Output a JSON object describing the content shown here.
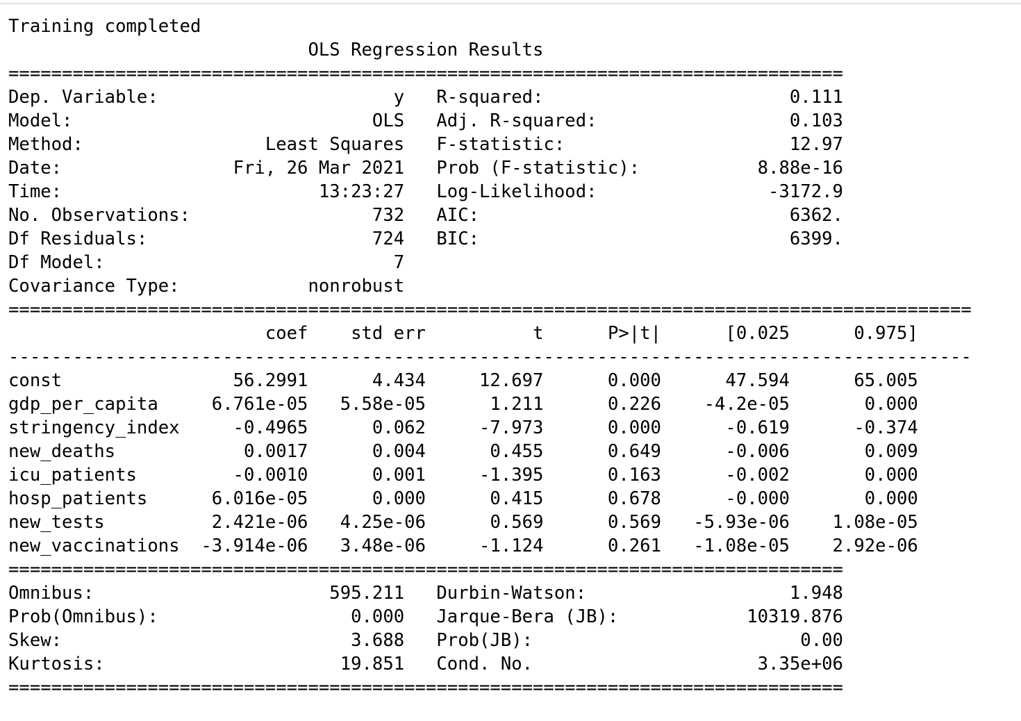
{
  "output": {
    "status": "Training completed",
    "title": "OLS Regression Results",
    "rule_double": "==============================================================================",
    "rule_double_wide": "==========================================================================================",
    "rule_single_wide": "------------------------------------------------------------------------------------------",
    "model_info": [
      {
        "left_label": "Dep. Variable:",
        "left_value": "y",
        "right_label": "R-squared:",
        "right_value": "0.111"
      },
      {
        "left_label": "Model:",
        "left_value": "OLS",
        "right_label": "Adj. R-squared:",
        "right_value": "0.103"
      },
      {
        "left_label": "Method:",
        "left_value": "Least Squares",
        "right_label": "F-statistic:",
        "right_value": "12.97"
      },
      {
        "left_label": "Date:",
        "left_value": "Fri, 26 Mar 2021",
        "right_label": "Prob (F-statistic):",
        "right_value": "8.88e-16"
      },
      {
        "left_label": "Time:",
        "left_value": "13:23:27",
        "right_label": "Log-Likelihood:",
        "right_value": "-3172.9"
      },
      {
        "left_label": "No. Observations:",
        "left_value": "732",
        "right_label": "AIC:",
        "right_value": "6362."
      },
      {
        "left_label": "Df Residuals:",
        "left_value": "724",
        "right_label": "BIC:",
        "right_value": "6399."
      },
      {
        "left_label": "Df Model:",
        "left_value": "7",
        "right_label": "",
        "right_value": ""
      },
      {
        "left_label": "Covariance Type:",
        "left_value": "nonrobust",
        "right_label": "",
        "right_value": ""
      }
    ],
    "coef_headers": [
      "coef",
      "std err",
      "t",
      "P>|t|",
      "[0.025",
      "0.975]"
    ],
    "coef_rows": [
      {
        "name": "const",
        "values": [
          "56.2991",
          "4.434",
          "12.697",
          "0.000",
          "47.594",
          "65.005"
        ]
      },
      {
        "name": "gdp_per_capita",
        "values": [
          "6.761e-05",
          "5.58e-05",
          "1.211",
          "0.226",
          "-4.2e-05",
          "0.000"
        ]
      },
      {
        "name": "stringency_index",
        "values": [
          "-0.4965",
          "0.062",
          "-7.973",
          "0.000",
          "-0.619",
          "-0.374"
        ]
      },
      {
        "name": "new_deaths",
        "values": [
          "0.0017",
          "0.004",
          "0.455",
          "0.649",
          "-0.006",
          "0.009"
        ]
      },
      {
        "name": "icu_patients",
        "values": [
          "-0.0010",
          "0.001",
          "-1.395",
          "0.163",
          "-0.002",
          "0.000"
        ]
      },
      {
        "name": "hosp_patients",
        "values": [
          "6.016e-05",
          "0.000",
          "0.415",
          "0.678",
          "-0.000",
          "0.000"
        ]
      },
      {
        "name": "new_tests",
        "values": [
          "2.421e-06",
          "4.25e-06",
          "0.569",
          "0.569",
          "-5.93e-06",
          "1.08e-05"
        ]
      },
      {
        "name": "new_vaccinations",
        "values": [
          "-3.914e-06",
          "3.48e-06",
          "-1.124",
          "0.261",
          "-1.08e-05",
          "2.92e-06"
        ]
      }
    ],
    "diagnostics": [
      {
        "left_label": "Omnibus:",
        "left_value": "595.211",
        "right_label": "Durbin-Watson:",
        "right_value": "1.948"
      },
      {
        "left_label": "Prob(Omnibus):",
        "left_value": "0.000",
        "right_label": "Jarque-Bera (JB):",
        "right_value": "10319.876"
      },
      {
        "left_label": "Skew:",
        "left_value": "3.688",
        "right_label": "Prob(JB):",
        "right_value": "0.00"
      },
      {
        "left_label": "Kurtosis:",
        "left_value": "19.851",
        "right_label": "Cond. No.",
        "right_value": "3.35e+06"
      }
    ]
  }
}
